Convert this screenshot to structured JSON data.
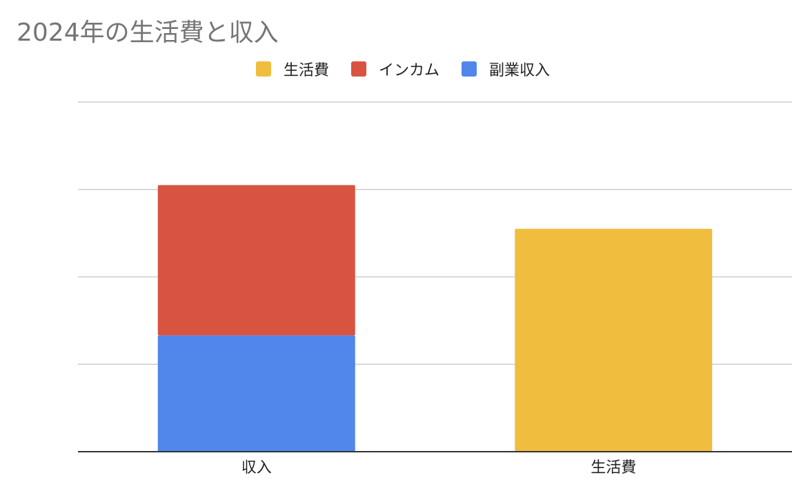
{
  "chart_data": {
    "type": "bar",
    "stacked": true,
    "title": "2024年の生活費と収入",
    "categories": [
      "収入",
      "生活費"
    ],
    "series": [
      {
        "name": "生活費",
        "color": "#F0BD3F",
        "values": [
          0,
          2.55
        ]
      },
      {
        "name": "インカム",
        "color": "#D95341",
        "values": [
          1.72,
          0
        ]
      },
      {
        "name": "副業収入",
        "color": "#5186EB",
        "values": [
          1.33,
          0
        ]
      }
    ],
    "ylim": [
      0,
      4
    ],
    "grid": true,
    "legend_position": "top",
    "xlabel": "",
    "ylabel": ""
  }
}
